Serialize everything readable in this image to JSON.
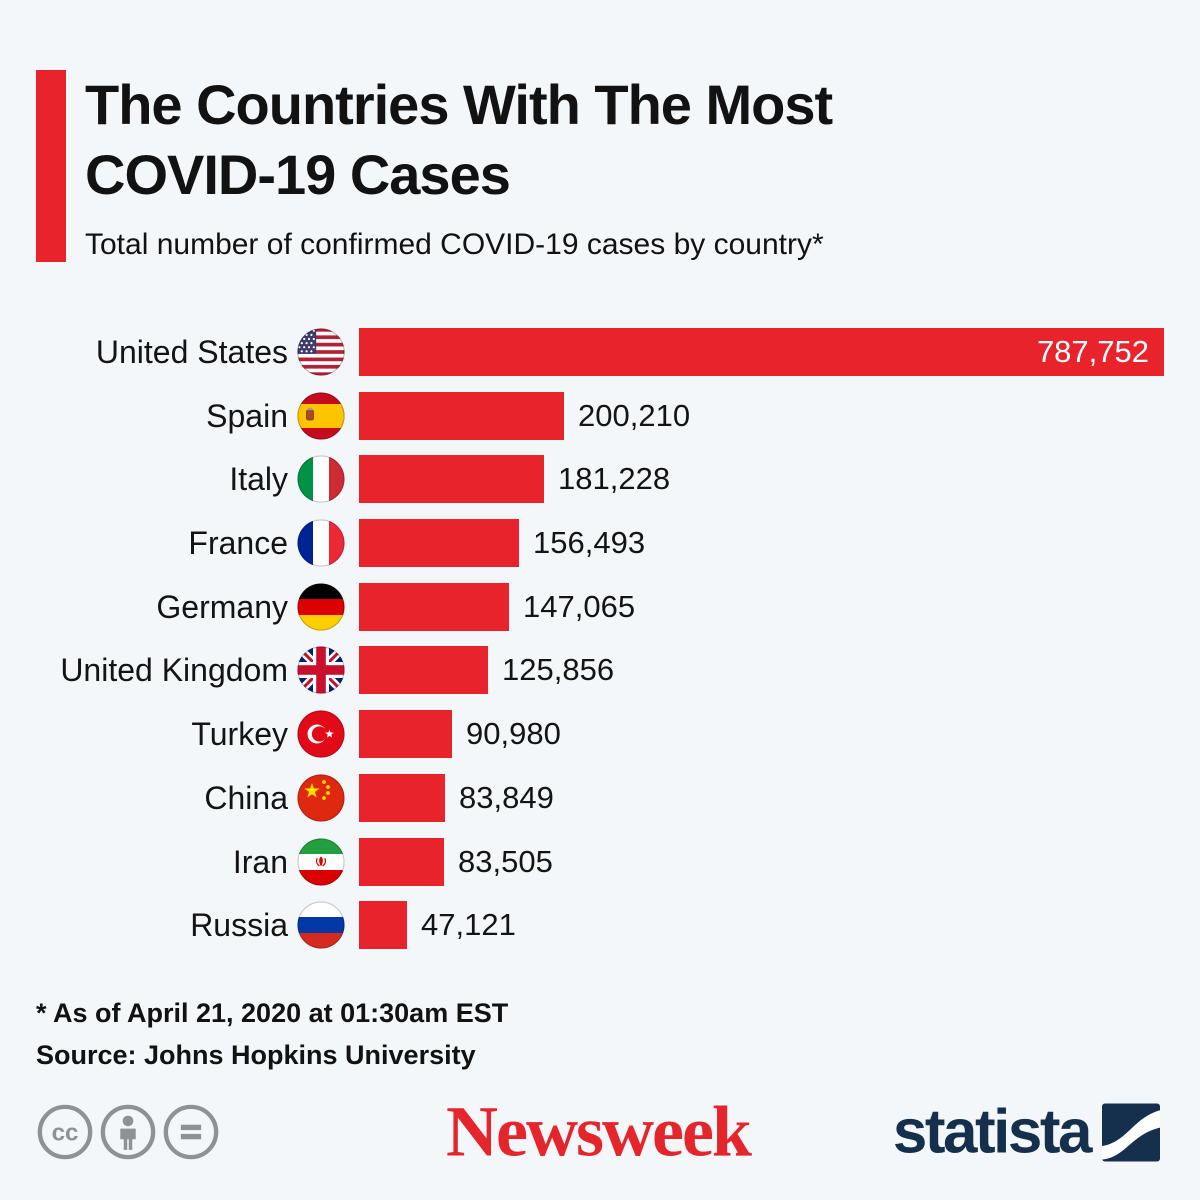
{
  "header": {
    "title_line1": "The Countries With The Most",
    "title_line2": "COVID-19 Cases",
    "subtitle": "Total number of confirmed COVID-19 cases by country*"
  },
  "chart_data": {
    "type": "bar",
    "orientation": "horizontal",
    "title": "The Countries With The Most COVID-19 Cases",
    "subtitle": "Total number of confirmed COVID-19 cases by country*",
    "xlim": [
      0,
      787752
    ],
    "grid": false,
    "legend": false,
    "bar_color": "#e8232b",
    "categories": [
      "United States",
      "Spain",
      "Italy",
      "France",
      "Germany",
      "United Kingdom",
      "Turkey",
      "China",
      "Iran",
      "Russia"
    ],
    "values": [
      787752,
      200210,
      181228,
      156493,
      147065,
      125856,
      90980,
      83849,
      83505,
      47121
    ],
    "rows": [
      {
        "country": "United States",
        "flag": "us",
        "value": 787752,
        "label": "787,752",
        "value_inside": true
      },
      {
        "country": "Spain",
        "flag": "es",
        "value": 200210,
        "label": "200,210",
        "value_inside": false
      },
      {
        "country": "Italy",
        "flag": "it",
        "value": 181228,
        "label": "181,228",
        "value_inside": false
      },
      {
        "country": "France",
        "flag": "fr",
        "value": 156493,
        "label": "156,493",
        "value_inside": false
      },
      {
        "country": "Germany",
        "flag": "de",
        "value": 147065,
        "label": "147,065",
        "value_inside": false
      },
      {
        "country": "United Kingdom",
        "flag": "gb",
        "value": 125856,
        "label": "125,856",
        "value_inside": false
      },
      {
        "country": "Turkey",
        "flag": "tr",
        "value": 90980,
        "label": "90,980",
        "value_inside": false
      },
      {
        "country": "China",
        "flag": "cn",
        "value": 83849,
        "label": "83,849",
        "value_inside": false
      },
      {
        "country": "Iran",
        "flag": "ir",
        "value": 83505,
        "label": "83,505",
        "value_inside": false
      },
      {
        "country": "Russia",
        "flag": "ru",
        "value": 47121,
        "label": "47,121",
        "value_inside": false
      }
    ]
  },
  "footnotes": {
    "asterisk_note": "* As of April 21, 2020 at 01:30am EST",
    "source": "Source: Johns Hopkins University"
  },
  "footer": {
    "license_icons": [
      "cc-icon",
      "attribution-person-icon",
      "equals-icon"
    ],
    "newsweek_logo_text": "Newsweek",
    "statista_logo_text": "statista"
  },
  "colors": {
    "background": "#f4f7fa",
    "bar": "#e8232b",
    "accent_bar": "#e8232b",
    "newsweek_red": "#e4252c",
    "statista_navy": "#14304d",
    "license_gray": "#8d9296",
    "text": "#141414"
  }
}
